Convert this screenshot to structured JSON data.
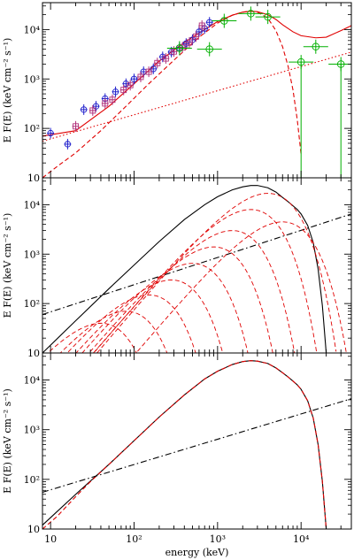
{
  "chart_data": [
    {
      "type": "line",
      "panel": "top",
      "xscale": "log",
      "yscale": "log",
      "xlim": [
        8,
        40000
      ],
      "ylim": [
        10,
        35000
      ],
      "ylabel": "E F(E) (keV cm⁻² s⁻¹)",
      "y_ticks": [
        "10",
        "10²",
        "10³",
        "10⁴"
      ],
      "grid": false,
      "series": [
        {
          "style": "solid",
          "color": "#e00000",
          "x": [
            8,
            20,
            50,
            100,
            200,
            400,
            700,
            1000,
            1500,
            2000,
            2500,
            3000,
            4000,
            5000,
            6000,
            8000,
            10000,
            15000,
            20000,
            30000,
            40000
          ],
          "y": [
            70,
            90,
            280,
            800,
            2300,
            5500,
            10000,
            14500,
            19500,
            22500,
            23500,
            23000,
            20000,
            16000,
            12500,
            9000,
            7500,
            6800,
            7000,
            9500,
            12000
          ]
        },
        {
          "style": "dashed",
          "color": "#e00000",
          "x": [
            8,
            12,
            20,
            40,
            80,
            150,
            300,
            600,
            1000,
            1500,
            2000,
            2500,
            3000,
            4000,
            5000,
            6000,
            7000,
            8000,
            9000,
            10000
          ],
          "y": [
            10,
            17,
            32,
            90,
            280,
            800,
            2400,
            7000,
            13500,
            19500,
            22500,
            23500,
            22500,
            17000,
            9500,
            4500,
            1800,
            600,
            150,
            30
          ]
        },
        {
          "style": "dotted",
          "color": "#e00000",
          "x": [
            8,
            40000
          ],
          "y": [
            55,
            3500
          ]
        }
      ],
      "data_groups": [
        {
          "marker": "circle-plus",
          "color": "#2020cc",
          "x": [
            10,
            16,
            25,
            35,
            45,
            60,
            80,
            100,
            130,
            170,
            220,
            280,
            350,
            420,
            500,
            600,
            700,
            800
          ],
          "y": [
            80,
            48,
            240,
            280,
            400,
            550,
            800,
            1000,
            1400,
            1600,
            2800,
            3500,
            4300,
            5200,
            6200,
            9000,
            10500,
            14000
          ]
        },
        {
          "marker": "square-cross",
          "color": "#b0307a",
          "x": [
            20,
            32,
            45,
            55,
            75,
            90,
            120,
            150,
            190,
            240,
            300,
            380,
            460,
            550,
            650
          ],
          "y": [
            110,
            230,
            320,
            380,
            600,
            750,
            1100,
            1400,
            2100,
            2600,
            3600,
            4400,
            5500,
            7200,
            12000
          ]
        },
        {
          "marker": "circle",
          "color": "#00b000",
          "x": [
            350,
            800,
            1200,
            2500,
            4000,
            10000,
            15000,
            30000
          ],
          "y": [
            4200,
            4000,
            15000,
            21000,
            18000,
            2200,
            4500,
            2000
          ]
        }
      ]
    },
    {
      "type": "line",
      "panel": "middle",
      "xscale": "log",
      "yscale": "log",
      "xlim": [
        8,
        40000
      ],
      "ylim": [
        10,
        35000
      ],
      "ylabel": "E F(E) (keV cm⁻² s⁻¹)",
      "y_ticks": [
        "10",
        "10²",
        "10³",
        "10⁴"
      ],
      "grid": false,
      "series": [
        {
          "style": "solid",
          "color": "#000000",
          "x": [
            8,
            20,
            50,
            100,
            200,
            400,
            700,
            1000,
            1500,
            2000,
            2500,
            3000,
            4000,
            5000,
            6000,
            7000,
            8000,
            9000,
            10000,
            12000,
            14000,
            16000,
            18000,
            20000
          ],
          "y": [
            10,
            45,
            200,
            600,
            1800,
            5000,
            10000,
            14500,
            20000,
            23000,
            24500,
            24500,
            22000,
            18000,
            14000,
            11500,
            9500,
            8000,
            6500,
            3800,
            1700,
            500,
            90,
            10
          ]
        },
        {
          "style": "dashdot",
          "color": "#000000",
          "x": [
            8,
            40000
          ],
          "y": [
            60,
            6500
          ]
        }
      ],
      "components": {
        "style": "dashed",
        "color": "#e00000",
        "peak_energy": [
          40,
          80,
          150,
          280,
          500,
          900,
          1500,
          2500,
          4000,
          6000
        ],
        "peak_value": [
          40,
          70,
          150,
          300,
          650,
          1400,
          3000,
          8000,
          17000,
          4500
        ]
      }
    },
    {
      "type": "line",
      "panel": "bottom",
      "xscale": "log",
      "yscale": "log",
      "xlim": [
        8,
        40000
      ],
      "ylim": [
        10,
        35000
      ],
      "xlabel": "energy (keV)",
      "ylabel": "E F(E) (keV cm⁻² s⁻¹)",
      "x_ticks": [
        "10",
        "10²",
        "10³",
        "10⁴"
      ],
      "y_ticks": [
        "10",
        "10²",
        "10³",
        "10⁴"
      ],
      "grid": false,
      "series": [
        {
          "style": "solid",
          "color": "#000000",
          "x": [
            8,
            20,
            50,
            100,
            200,
            400,
            700,
            1000,
            1500,
            2000,
            2500,
            3000,
            4000,
            5000,
            6000,
            7000,
            8000,
            9000,
            10000,
            12000,
            14000,
            16000,
            18000,
            20000
          ],
          "y": [
            12,
            50,
            200,
            600,
            1800,
            5000,
            10500,
            15000,
            20500,
            23500,
            24500,
            24000,
            21500,
            17500,
            14000,
            11500,
            9500,
            8000,
            6500,
            3800,
            1700,
            500,
            90,
            10
          ]
        },
        {
          "style": "dashed",
          "color": "#e00000",
          "x": [
            8,
            12,
            20,
            30,
            50,
            100,
            200,
            400,
            700,
            1000,
            1500,
            2000,
            2500,
            3000,
            4000,
            5000,
            6000,
            7000,
            8000,
            9000,
            10000,
            12000,
            14000,
            16000,
            18000,
            20000
          ],
          "y": [
            10,
            18,
            45,
            90,
            200,
            600,
            1800,
            5000,
            10500,
            15000,
            20500,
            23500,
            24500,
            24000,
            21500,
            17500,
            14000,
            11500,
            9500,
            8000,
            6500,
            3800,
            1700,
            500,
            90,
            10
          ]
        },
        {
          "style": "dashdot",
          "color": "#000000",
          "x": [
            8,
            40000
          ],
          "y": [
            55,
            4200
          ]
        }
      ]
    }
  ]
}
